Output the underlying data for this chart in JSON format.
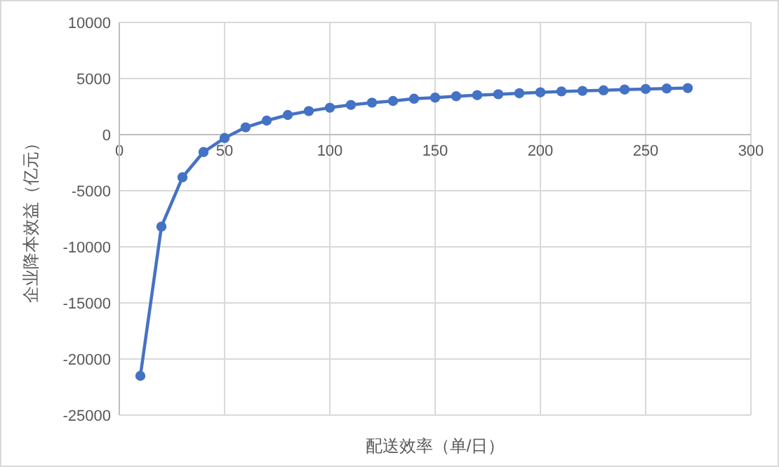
{
  "chart_data": {
    "type": "line",
    "xlabel": "配送效率（单/日）",
    "ylabel": "企业降本效益（亿元）",
    "x": [
      10,
      20,
      30,
      40,
      50,
      60,
      70,
      80,
      90,
      100,
      110,
      120,
      130,
      140,
      150,
      160,
      170,
      180,
      190,
      200,
      210,
      220,
      230,
      240,
      250,
      260,
      270
    ],
    "series": [
      {
        "color": "#4472c4",
        "values": [
          -21500,
          -8200,
          -3800,
          -1550,
          -300,
          650,
          1250,
          1750,
          2100,
          2400,
          2650,
          2850,
          3000,
          3200,
          3300,
          3420,
          3520,
          3600,
          3690,
          3770,
          3850,
          3900,
          3950,
          4020,
          4070,
          4110,
          4150
        ]
      }
    ],
    "xlim": [
      0,
      300
    ],
    "xticks": [
      0,
      50,
      100,
      150,
      200,
      250,
      300
    ],
    "ylim": [
      -25000,
      10000
    ],
    "yticks": [
      -25000,
      -20000,
      -15000,
      -10000,
      -5000,
      0,
      5000,
      10000
    ],
    "grid": true,
    "marker": "circle",
    "line_style": "solid"
  }
}
